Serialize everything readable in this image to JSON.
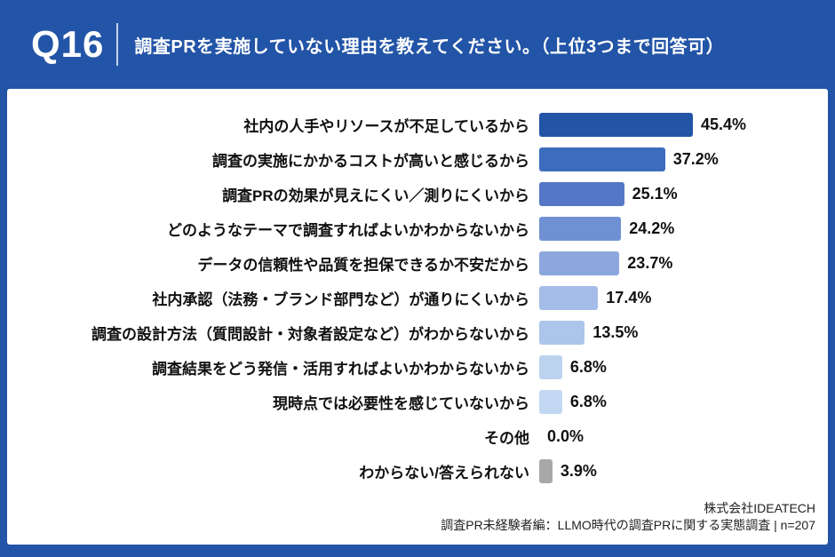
{
  "header": {
    "tag": "Q16",
    "title": "調査PRを実施していない理由を教えてください。（上位3つまで回答可）"
  },
  "chart_data": {
    "type": "bar",
    "orientation": "horizontal",
    "title": "調査PRを実施していない理由を教えてください。（上位3つまで回答可）",
    "unit": "%",
    "xlim": [
      0,
      50
    ],
    "grid": false,
    "legend": "none",
    "categories": [
      "社内の人手やリソースが不足しているから",
      "調査の実施にかかるコストが高いと感じるから",
      "調査PRの効果が見えにくい／測りにくいから",
      "どのようなテーマで調査すればよいかわからないから",
      "データの信頼性や品質を担保できるか不安だから",
      "社内承認（法務・ブランド部門など）が通りにくいから",
      "調査の設計方法（質問設計・対象者設定など）がわからないから",
      "調査結果をどう発信・活用すればよいかわからないから",
      "現時点では必要性を感じていないから",
      "その他",
      "わからない/答えられない"
    ],
    "values": [
      45.4,
      37.2,
      25.1,
      24.2,
      23.7,
      17.4,
      13.5,
      6.8,
      6.8,
      0.0,
      3.9
    ],
    "value_labels": [
      "45.4%",
      "37.2%",
      "25.1%",
      "24.2%",
      "23.7%",
      "17.4%",
      "13.5%",
      "6.8%",
      "6.8%",
      "0.0%",
      "3.9%"
    ],
    "bar_colors": [
      "#2355a7",
      "#3d6cbe",
      "#5478c5",
      "#6f90d2",
      "#8ba7dc",
      "#a4bce7",
      "#adc5ea",
      "#bcd3f0",
      "#c2d8f2",
      "none",
      "#a8a8a8"
    ]
  },
  "footer": {
    "company": "株式会社IDEATECH",
    "source": "調査PR未経験者編：LLMO時代の調査PRに関する実態調査 | n=207"
  },
  "colors": {
    "frame_blue": "#2254a7",
    "panel_white": "#ffffff",
    "text_dark": "#111111",
    "gray_bar": "#a8a8a8"
  }
}
